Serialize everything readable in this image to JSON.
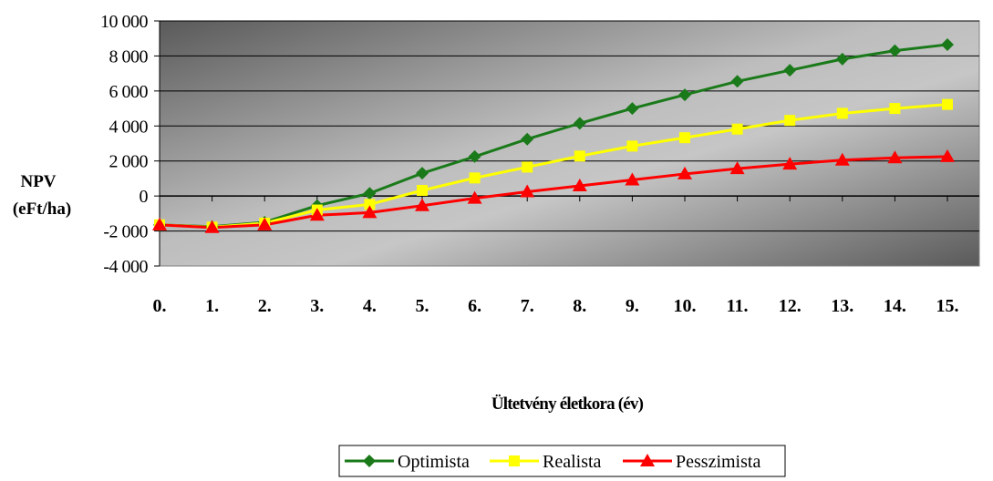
{
  "chart_data": {
    "type": "line",
    "xlabel": "Ültetvény életkora (év)",
    "ylabel_lines": [
      "NPV",
      "(eFt/ha)"
    ],
    "categories": [
      "0.",
      "1.",
      "2.",
      "3.",
      "4.",
      "5.",
      "6.",
      "7.",
      "8.",
      "9.",
      "10.",
      "11.",
      "12.",
      "13.",
      "14.",
      "15."
    ],
    "ylim": [
      -4000,
      10000
    ],
    "yticks": [
      -4000,
      -2000,
      0,
      2000,
      4000,
      6000,
      8000,
      10000
    ],
    "ytick_labels": [
      "-4 000",
      "-2 000",
      "0",
      "2 000",
      "4 000",
      "6 000",
      "8 000",
      "10 000"
    ],
    "grid": true,
    "legend_position": "bottom-center",
    "series": [
      {
        "name": "Optimista",
        "color": "#1a7a1a",
        "marker": "diamond",
        "values": [
          -1650,
          -1750,
          -1500,
          -550,
          150,
          1300,
          2250,
          3250,
          4150,
          5000,
          5780,
          6550,
          7180,
          7820,
          8300,
          8650
        ]
      },
      {
        "name": "Realista",
        "color": "#ffff00",
        "marker": "square",
        "values": [
          -1650,
          -1780,
          -1550,
          -800,
          -480,
          320,
          1030,
          1650,
          2280,
          2850,
          3330,
          3820,
          4320,
          4720,
          5000,
          5230
        ]
      },
      {
        "name": "Pesszimista",
        "color": "#ff0000",
        "marker": "triangle",
        "values": [
          -1650,
          -1800,
          -1650,
          -1100,
          -950,
          -550,
          -130,
          240,
          580,
          920,
          1260,
          1560,
          1820,
          2050,
          2180,
          2250
        ]
      }
    ]
  }
}
